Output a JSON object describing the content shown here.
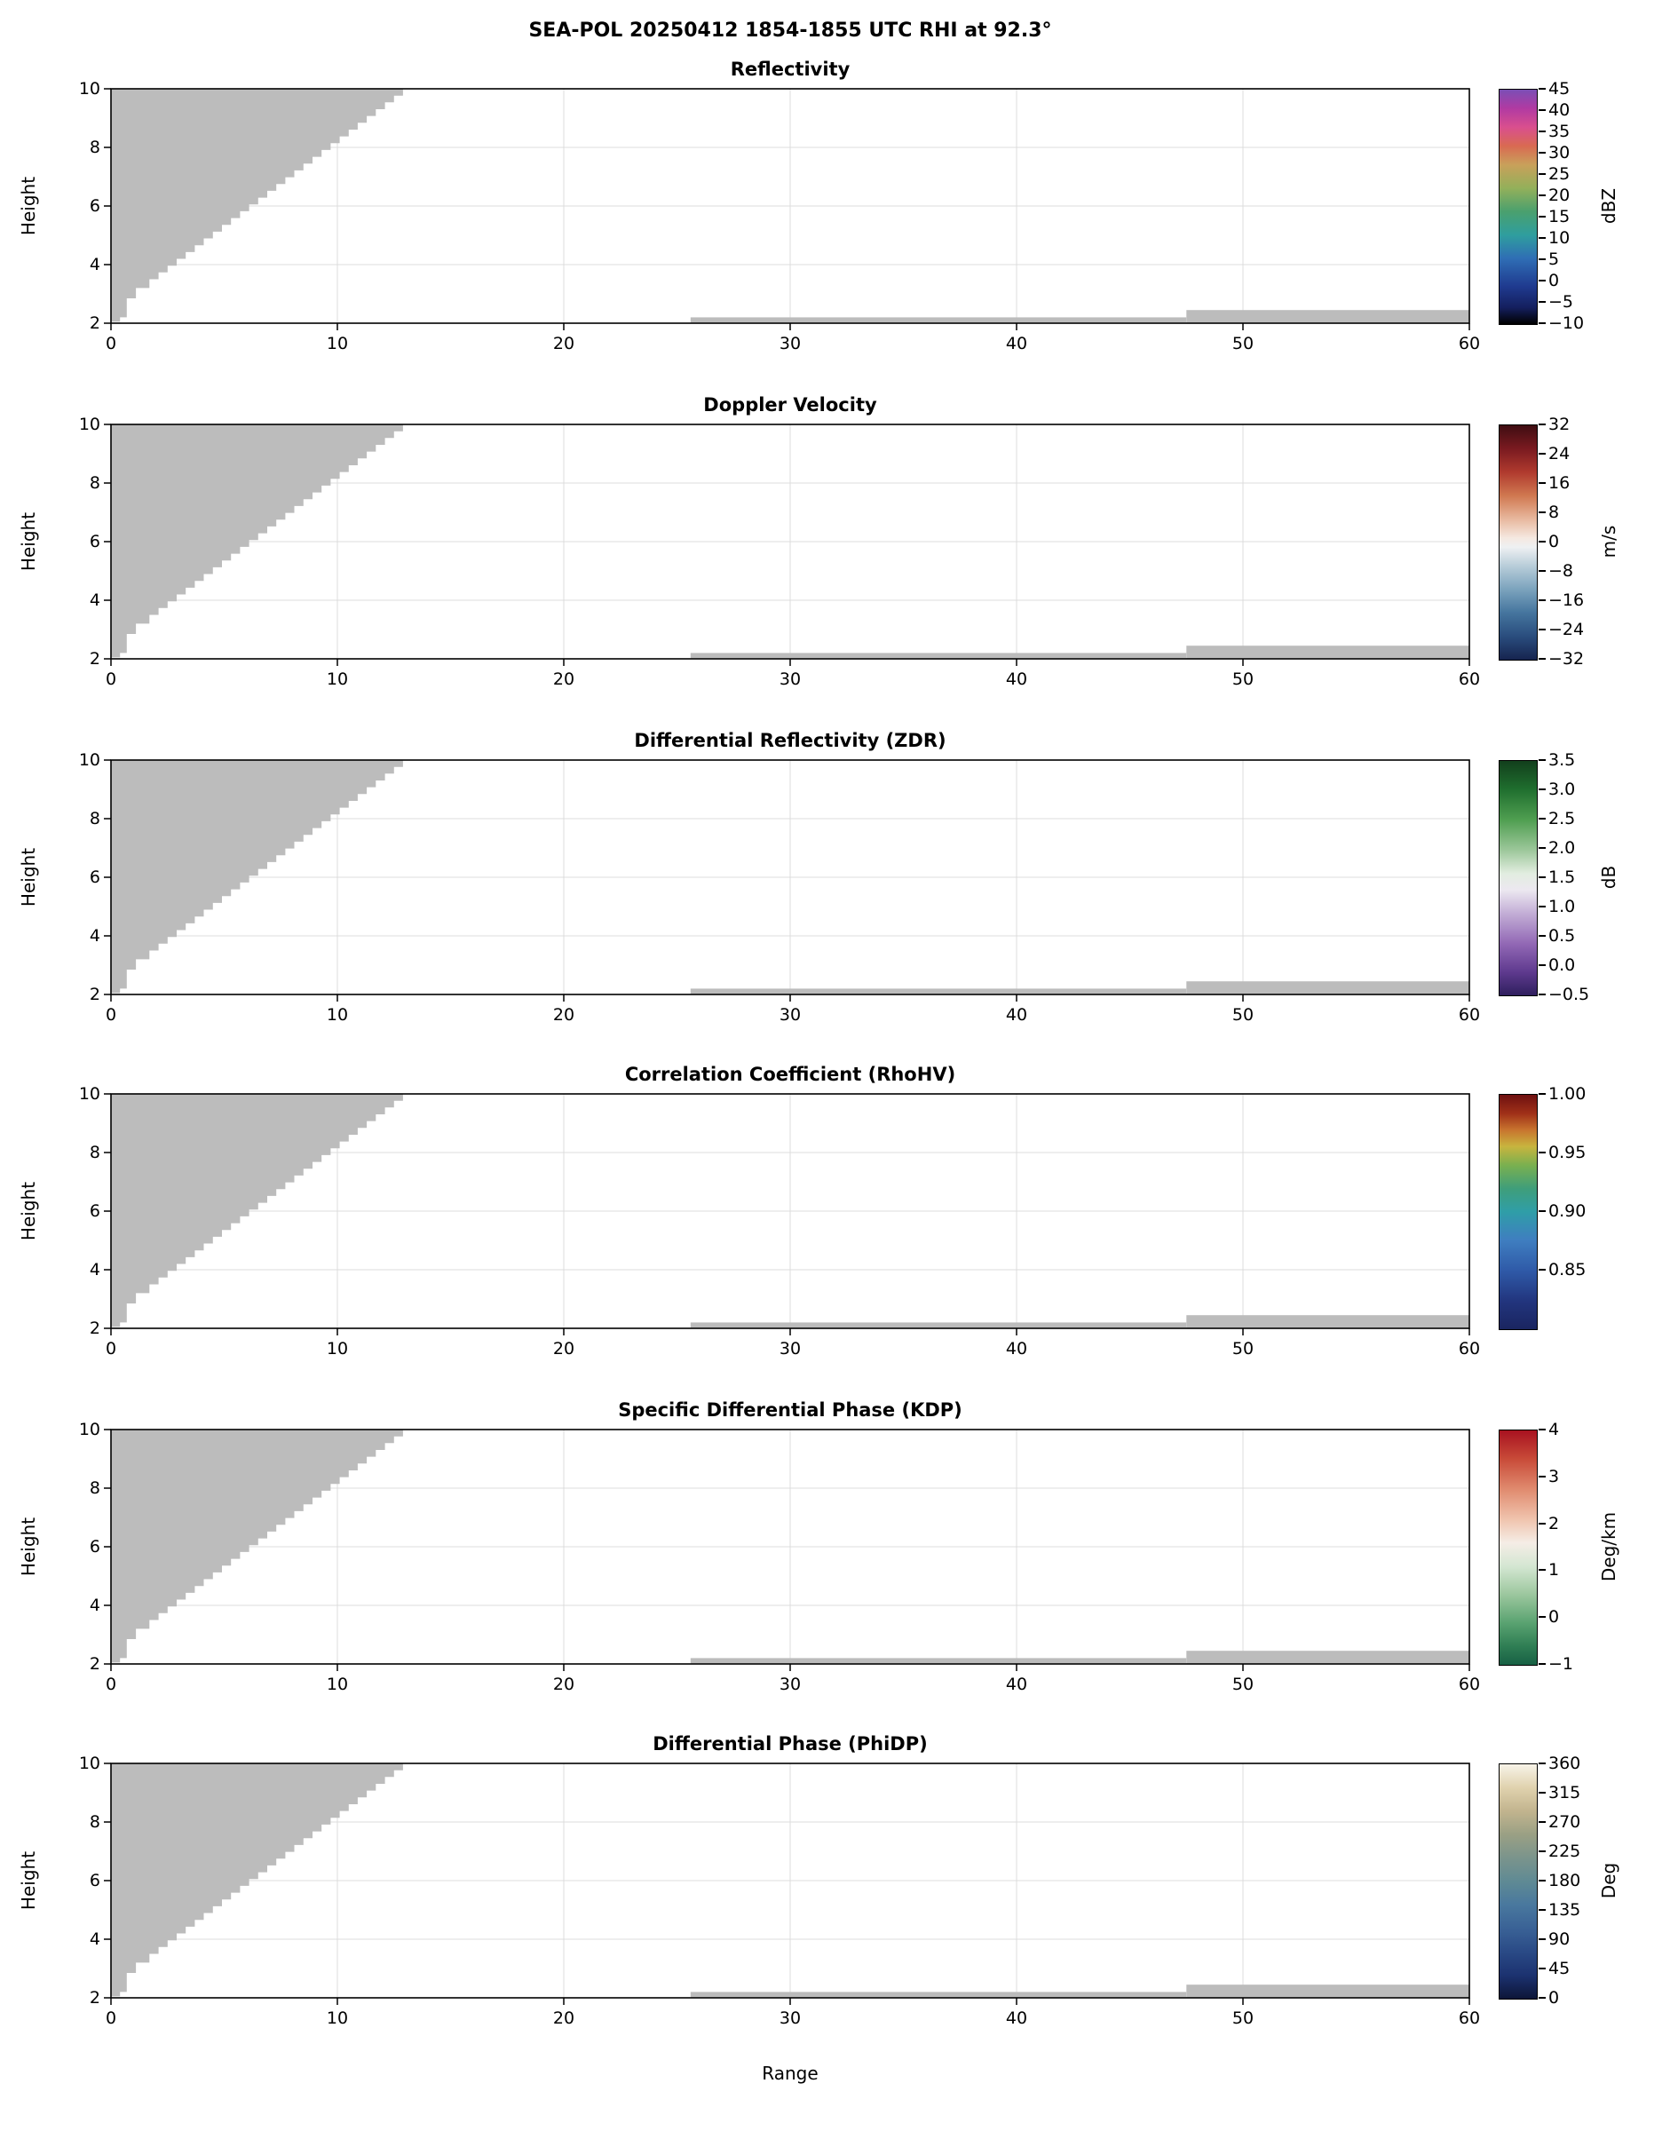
{
  "chart_data": {
    "type": "heatmap",
    "title": "SEA-POL 20250412 1854-1855 UTC RHI at 92.3°",
    "xlabel": "Range",
    "ylabel": "Height",
    "xlim": [
      0,
      60
    ],
    "ylim": [
      2,
      10
    ],
    "xticks": [
      0,
      10,
      20,
      30,
      40,
      50,
      60
    ],
    "yticks": [
      2,
      4,
      6,
      8,
      10
    ],
    "mask_color": "#bcbcbc",
    "data_note": "Six-panel RHI radar cross-section. All radar bins shown are masked/no-data: a gray stepped wedge fills the upper-left (x=0 to ~13, rising from y~2 to y=10) and a thin gray low-level strip spans x~25.6-60 near y~2 (slightly thicker beyond x~47.5). No colored data values are rendered in any panel.",
    "masked_regions": {
      "wedge_edge": [
        [
          0,
          2.05
        ],
        [
          0.4,
          2.2
        ],
        [
          0.7,
          2.85
        ],
        [
          1.1,
          3.2
        ],
        [
          1.7,
          3.5
        ],
        [
          12.9,
          10
        ]
      ],
      "strips": [
        {
          "x0": 25.6,
          "x1": 47.5,
          "y0": 2.02,
          "y1": 2.2
        },
        {
          "x0": 47.5,
          "x1": 60,
          "y0": 2.02,
          "y1": 2.45
        }
      ]
    },
    "panels": [
      {
        "title": "Reflectivity",
        "unit": "dBZ",
        "crange": [
          -10,
          45
        ],
        "cticks": [
          "45",
          "40",
          "35",
          "30",
          "25",
          "20",
          "15",
          "10",
          "5",
          "0",
          "−5",
          "−10"
        ],
        "gradient": [
          [
            0,
            "#7b4fb5"
          ],
          [
            8,
            "#b13aa2"
          ],
          [
            16,
            "#d94f8e"
          ],
          [
            24,
            "#d96a52"
          ],
          [
            32,
            "#c9a05a"
          ],
          [
            42,
            "#93b05a"
          ],
          [
            52,
            "#4aa06e"
          ],
          [
            62,
            "#2f9e9e"
          ],
          [
            72,
            "#2f6eb5"
          ],
          [
            84,
            "#1f3a8f"
          ],
          [
            93,
            "#141f5e"
          ],
          [
            100,
            "#000000"
          ]
        ]
      },
      {
        "title": "Doppler Velocity",
        "unit": "m/s",
        "crange": [
          -32,
          32
        ],
        "cticks": [
          "32",
          "24",
          "16",
          "8",
          "0",
          "−8",
          "−16",
          "−24",
          "−32"
        ],
        "gradient": [
          [
            0,
            "#3f0d12"
          ],
          [
            10,
            "#7a1a20"
          ],
          [
            20,
            "#b03a2e"
          ],
          [
            30,
            "#d07850"
          ],
          [
            40,
            "#e8b89e"
          ],
          [
            48,
            "#f5e8e0"
          ],
          [
            52,
            "#eef0f2"
          ],
          [
            60,
            "#b8cdd9"
          ],
          [
            70,
            "#7ba3bd"
          ],
          [
            80,
            "#45759e"
          ],
          [
            90,
            "#2a4d7e"
          ],
          [
            100,
            "#16244f"
          ]
        ]
      },
      {
        "title": "Differential Reflectivity (ZDR)",
        "unit": "dB",
        "crange": [
          -0.5,
          3.5
        ],
        "cticks": [
          "3.5",
          "3.0",
          "2.5",
          "2.0",
          "1.5",
          "1.0",
          "0.5",
          "0.0",
          "−0.5"
        ],
        "gradient": [
          [
            0,
            "#123f1c"
          ],
          [
            12,
            "#1f6e2e"
          ],
          [
            25,
            "#4f9e50"
          ],
          [
            38,
            "#9cc79a"
          ],
          [
            48,
            "#e2ede0"
          ],
          [
            55,
            "#ece8f0"
          ],
          [
            65,
            "#c3aed6"
          ],
          [
            78,
            "#9268b5"
          ],
          [
            90,
            "#5f3a8f"
          ],
          [
            100,
            "#2f1f5e"
          ]
        ]
      },
      {
        "title": "Correlation Coefficient (RhoHV)",
        "unit": "",
        "crange": [
          0.8,
          1.0
        ],
        "cticks": [
          "1.00",
          "0.95",
          "0.90",
          "0.85"
        ],
        "gradient": [
          [
            0,
            "#6e1010"
          ],
          [
            8,
            "#a03018"
          ],
          [
            15,
            "#c8742e"
          ],
          [
            22,
            "#c8b43e"
          ],
          [
            30,
            "#7ab04f"
          ],
          [
            40,
            "#3f9e7a"
          ],
          [
            50,
            "#2f9ea8"
          ],
          [
            62,
            "#3f7ec0"
          ],
          [
            75,
            "#2f5aa8"
          ],
          [
            88,
            "#22357e"
          ],
          [
            100,
            "#1a2560"
          ]
        ]
      },
      {
        "title": "Specific Differential Phase (KDP)",
        "unit": "Deg/km",
        "crange": [
          -1,
          4
        ],
        "cticks": [
          "4",
          "3",
          "2",
          "1",
          "0",
          "−1"
        ],
        "gradient": [
          [
            0,
            "#a81220"
          ],
          [
            12,
            "#c84a38"
          ],
          [
            25,
            "#e08a6e"
          ],
          [
            38,
            "#f0c4ae"
          ],
          [
            48,
            "#f5ede6"
          ],
          [
            58,
            "#d4e6d2"
          ],
          [
            70,
            "#9cc79e"
          ],
          [
            82,
            "#5aa371"
          ],
          [
            92,
            "#2f7e54"
          ],
          [
            100,
            "#176044"
          ]
        ]
      },
      {
        "title": "Differential Phase (PhiDP)",
        "unit": "Deg",
        "crange": [
          0,
          360
        ],
        "cticks": [
          "360",
          "315",
          "270",
          "225",
          "180",
          "135",
          "90",
          "45",
          "0"
        ],
        "gradient": [
          [
            0,
            "#f7f3e8"
          ],
          [
            10,
            "#e0d2ae"
          ],
          [
            20,
            "#c2b48e"
          ],
          [
            30,
            "#9aa084"
          ],
          [
            40,
            "#7a948c"
          ],
          [
            50,
            "#5f8a94"
          ],
          [
            60,
            "#49789e"
          ],
          [
            70,
            "#3a6296"
          ],
          [
            80,
            "#2a4a86"
          ],
          [
            90,
            "#1c3270"
          ],
          [
            100,
            "#0d1638"
          ]
        ]
      }
    ]
  }
}
